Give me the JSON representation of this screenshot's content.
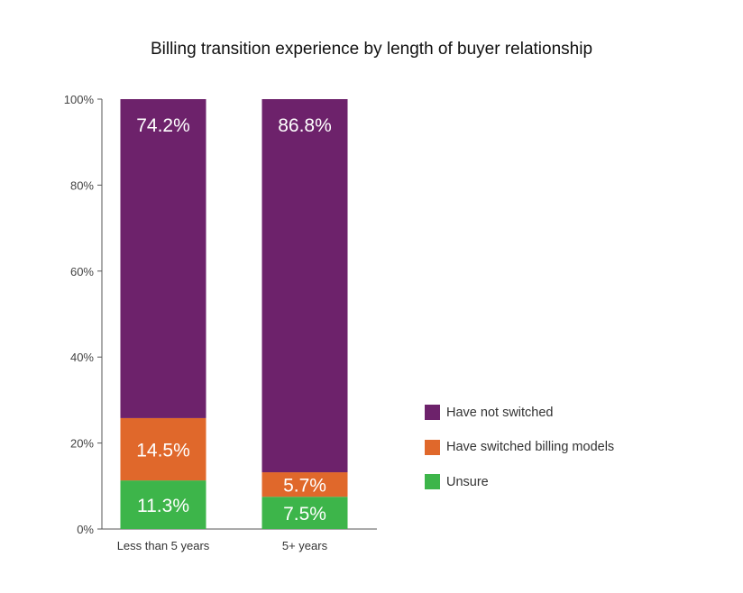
{
  "chart_data": {
    "type": "bar",
    "stacked": true,
    "title": "Billing transition experience by length of buyer relationship",
    "xlabel": "",
    "ylabel": "",
    "ylim": [
      0,
      100
    ],
    "y_ticks": [
      "0%",
      "20%",
      "40%",
      "60%",
      "80%",
      "100%"
    ],
    "categories": [
      "Less than 5 years",
      "5+ years"
    ],
    "series": [
      {
        "name": "Unsure",
        "color": "#3db54a",
        "values": [
          11.3,
          7.5
        ],
        "labels": [
          "11.3%",
          "7.5%"
        ]
      },
      {
        "name": "Have switched billing models",
        "color": "#e0682b",
        "values": [
          14.5,
          5.7
        ],
        "labels": [
          "14.5%",
          "5.7%"
        ]
      },
      {
        "name": "Have not switched",
        "color": "#6d226b",
        "values": [
          74.2,
          86.8
        ],
        "labels": [
          "74.2%",
          "86.8%"
        ]
      }
    ],
    "legend_order": [
      "Have not switched",
      "Have switched billing models",
      "Unsure"
    ],
    "legend_position": "right",
    "grid": false
  }
}
